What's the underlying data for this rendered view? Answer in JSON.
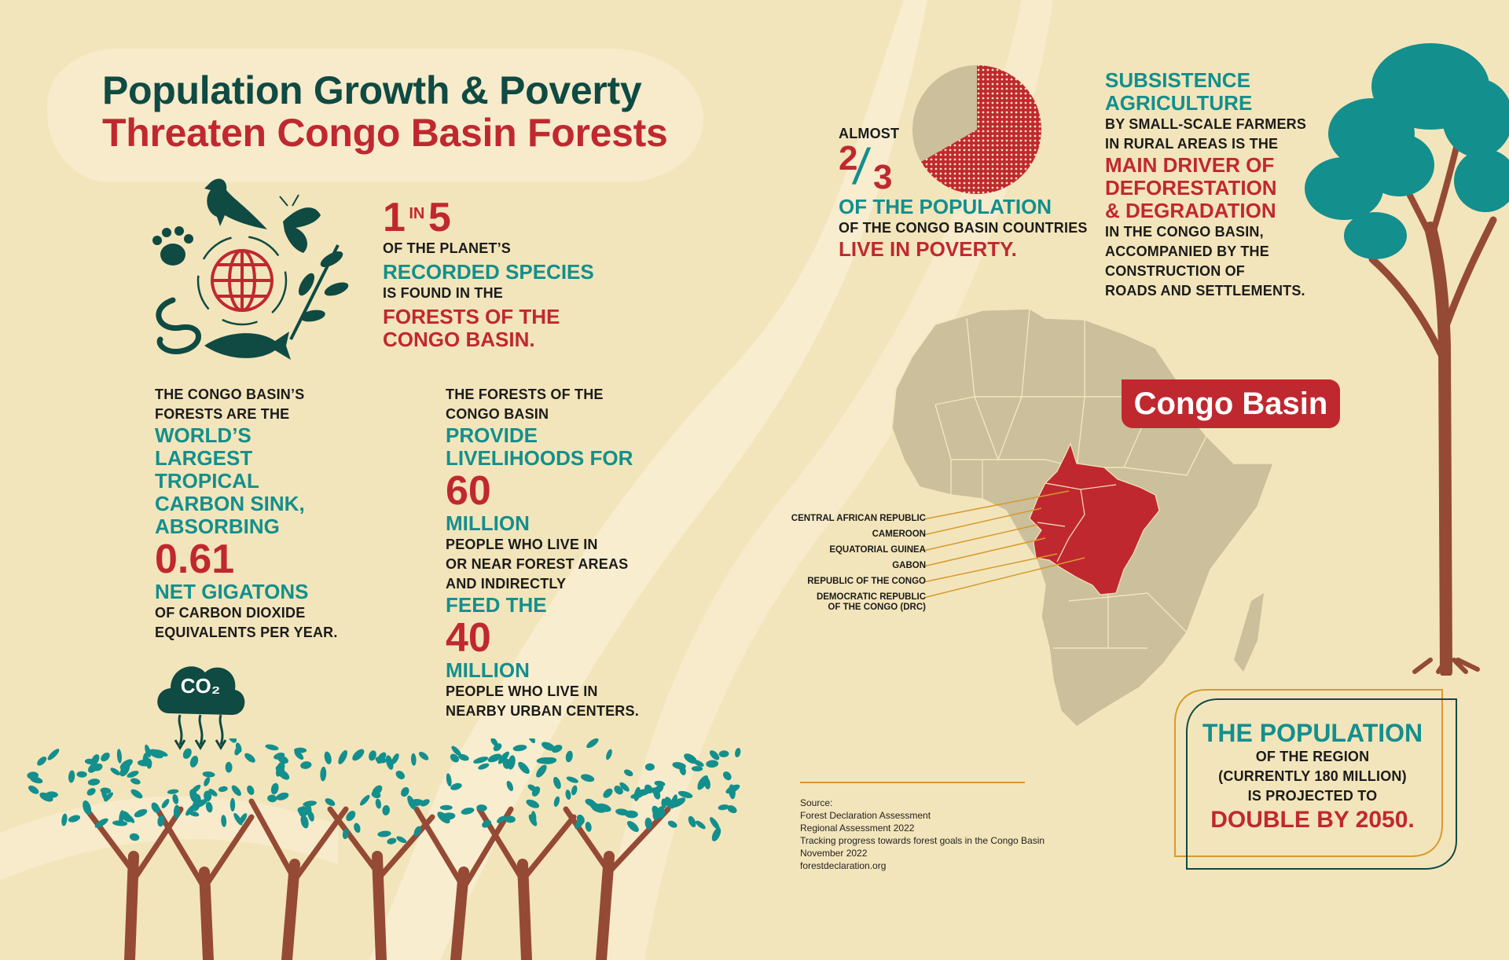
{
  "title": {
    "line1": "Population Growth & Poverty",
    "line2": "Threaten Congo Basin Forests"
  },
  "species": {
    "num1": "1",
    "in_word": "IN",
    "num2": "5",
    "line1": "OF THE PLANET’S",
    "highlight": "RECORDED SPECIES",
    "line2": "IS FOUND IN THE",
    "red1": "FORESTS OF THE",
    "red2": "CONGO BASIN."
  },
  "carbon": {
    "intro1": "THE CONGO BASIN’S",
    "intro2": "FORESTS ARE THE",
    "hl1": "WORLD’S",
    "hl2": "LARGEST",
    "hl3": "TROPICAL",
    "hl4": "CARBON SINK,",
    "hl5": "ABSORBING",
    "value": "0.61",
    "unit": "NET GIGATONS",
    "tail1": "OF CARBON DIOXIDE",
    "tail2": "EQUIVALENTS PER YEAR.",
    "cloud_label": "CO₂"
  },
  "livelihoods": {
    "intro1": "THE FORESTS OF THE",
    "intro2": "CONGO BASIN",
    "hl1": "PROVIDE",
    "hl2": "LIVELIHOODS FOR",
    "value1": "60",
    "million1": "MILLION",
    "mid1": "PEOPLE WHO LIVE IN",
    "mid2": "OR NEAR FOREST AREAS",
    "mid3": "AND INDIRECTLY",
    "hl3": "FEED THE",
    "value2": "40",
    "million2": "MILLION",
    "tail1": "PEOPLE WHO LIVE IN",
    "tail2": "NEARBY URBAN CENTERS."
  },
  "poverty": {
    "almost": "ALMOST",
    "numerator": "2",
    "denominator": "3",
    "share": 0.6667,
    "hl": "OF THE POPULATION",
    "line": "OF THE CONGO BASIN COUNTRIES",
    "red": "LIVE IN POVERTY.",
    "colors": {
      "poverty": "#c0282f",
      "rest": "#cbbf9c"
    }
  },
  "agriculture": {
    "hl1": "SUBSISTENCE",
    "hl2": "AGRICULTURE",
    "line1": "BY SMALL-SCALE FARMERS",
    "line2": "IN RURAL AREAS IS THE",
    "red1": "MAIN DRIVER OF",
    "red2": "DEFORESTATION",
    "red3": "& DEGRADATION",
    "line3": "IN THE CONGO BASIN,",
    "line4": "ACCOMPANIED BY THE",
    "line5": "CONSTRUCTION OF",
    "line6": "ROADS AND SETTLEMENTS."
  },
  "map": {
    "tag": "Congo Basin",
    "countries": [
      "CENTRAL AFRICAN REPUBLIC",
      "CAMEROON",
      "EQUATORIAL GUINEA",
      "GABON",
      "REPUBLIC OF THE CONGO",
      "DEMOCRATIC REPUBLIC",
      "OF THE CONGO (DRC)"
    ]
  },
  "projection": {
    "hl": "THE POPULATION",
    "line1": "OF THE REGION",
    "line2": "(CURRENTLY 180 MILLION)",
    "line3": "IS PROJECTED TO",
    "red": "DOUBLE BY 2050."
  },
  "source": {
    "label": "Source:",
    "lines": [
      "Forest Declaration Assessment",
      "Regional Assessment 2022",
      "Tracking progress towards forest goals in the Congo Basin",
      "November 2022",
      "forestdeclaration.org"
    ]
  },
  "colors": {
    "background": "#f3e5bb",
    "teal": "#138f8d",
    "dark_green": "#0f4a43",
    "red": "#c0282f",
    "trunk": "#954a35",
    "map_land": "#cbbf9c",
    "gold": "#d69a2e"
  }
}
